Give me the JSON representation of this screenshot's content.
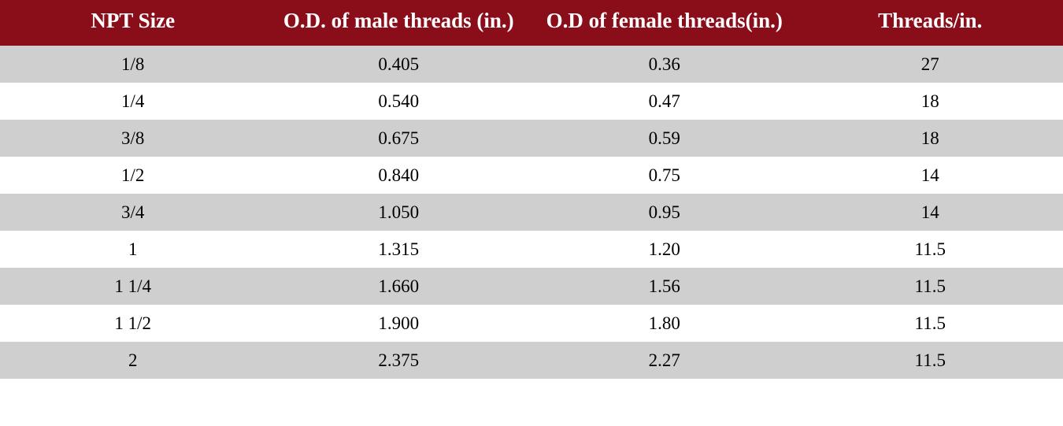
{
  "table": {
    "type": "table",
    "colors": {
      "header_bg": "#8a0d1a",
      "header_fg": "#ffffff",
      "row_odd_bg": "#cfcfcf",
      "row_even_bg": "#ffffff",
      "body_fg": "#000000"
    },
    "typography": {
      "header_font_family": "Georgia, 'Times New Roman', serif",
      "header_font_weight": 700,
      "header_fontsize_pt": 20,
      "body_font_family": "Georgia, 'Times New Roman', serif",
      "body_fontsize_pt": 17
    },
    "column_widths_pct": [
      25,
      25,
      25,
      25
    ],
    "column_align": [
      "center",
      "center",
      "center",
      "center"
    ],
    "columns": [
      "NPT Size",
      "O.D. of male threads (in.)",
      "O.D of female threads(in.)",
      "Threads/in."
    ],
    "rows": [
      [
        "1/8",
        "0.405",
        "0.36",
        "27"
      ],
      [
        "1/4",
        "0.540",
        "0.47",
        "18"
      ],
      [
        "3/8",
        "0.675",
        "0.59",
        "18"
      ],
      [
        "1/2",
        "0.840",
        "0.75",
        "14"
      ],
      [
        "3/4",
        "1.050",
        "0.95",
        "14"
      ],
      [
        "1",
        "1.315",
        "1.20",
        "11.5"
      ],
      [
        "1 1/4",
        "1.660",
        "1.56",
        "11.5"
      ],
      [
        "1 1/2",
        "1.900",
        "1.80",
        "11.5"
      ],
      [
        "2",
        "2.375",
        "2.27",
        "11.5"
      ]
    ]
  }
}
